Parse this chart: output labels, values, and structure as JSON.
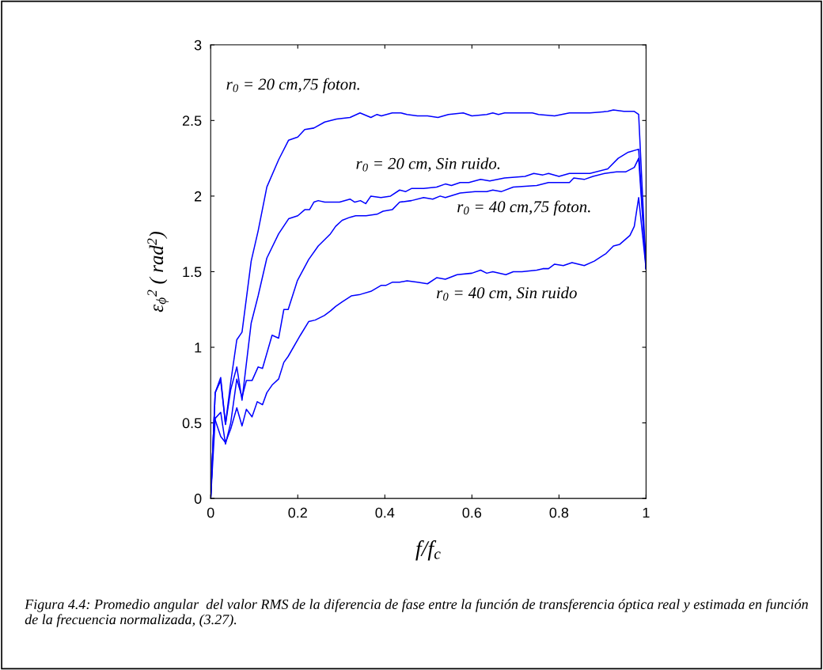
{
  "chart_data": {
    "type": "line",
    "xlabel": "f/f$_{c}$",
    "ylabel": "ε$_{ϕ}$$^{2}$ ( rad$^{2}$)",
    "xlim": [
      0,
      1
    ],
    "ylim": [
      0,
      3
    ],
    "xticks": [
      0,
      0.2,
      0.4,
      0.6,
      0.8,
      1
    ],
    "yticks": [
      0,
      0.5,
      1,
      1.5,
      2,
      2.5,
      3
    ],
    "grid": false,
    "marker": "none",
    "line_style": "solid",
    "series": [
      {
        "color": "#0000ff",
        "x": [
          0,
          0.0104,
          0.023,
          0.034,
          0.046,
          0.06,
          0.072,
          0.093,
          0.109,
          0.129,
          0.156,
          0.179,
          0.2,
          0.216,
          0.237,
          0.262,
          0.289,
          0.32,
          0.343,
          0.368,
          0.382,
          0.392,
          0.417,
          0.437,
          0.451,
          0.475,
          0.498,
          0.522,
          0.546,
          0.58,
          0.6,
          0.634,
          0.648,
          0.661,
          0.675,
          0.715,
          0.739,
          0.753,
          0.79,
          0.824,
          0.871,
          0.912,
          0.925,
          0.949,
          0.973,
          0.983,
          1
        ],
        "values": [
          0,
          0.7,
          0.8,
          0.49,
          0.77,
          1.05,
          1.1,
          1.57,
          1.77,
          2.06,
          2.24,
          2.37,
          2.39,
          2.44,
          2.45,
          2.49,
          2.51,
          2.52,
          2.55,
          2.52,
          2.54,
          2.53,
          2.55,
          2.55,
          2.54,
          2.53,
          2.53,
          2.52,
          2.54,
          2.55,
          2.53,
          2.54,
          2.55,
          2.54,
          2.55,
          2.55,
          2.55,
          2.54,
          2.53,
          2.55,
          2.55,
          2.56,
          2.57,
          2.56,
          2.56,
          2.54,
          1.52
        ]
      },
      {
        "color": "#0000ff",
        "x": [
          0,
          0.0104,
          0.023,
          0.034,
          0.046,
          0.06,
          0.072,
          0.093,
          0.109,
          0.129,
          0.156,
          0.179,
          0.2,
          0.216,
          0.227,
          0.237,
          0.247,
          0.262,
          0.282,
          0.296,
          0.32,
          0.331,
          0.344,
          0.356,
          0.368,
          0.391,
          0.413,
          0.434,
          0.448,
          0.461,
          0.489,
          0.519,
          0.539,
          0.553,
          0.573,
          0.593,
          0.62,
          0.641,
          0.675,
          0.722,
          0.742,
          0.763,
          0.776,
          0.8,
          0.824,
          0.871,
          0.912,
          0.936,
          0.959,
          0.983,
          1
        ],
        "values": [
          0,
          0.7,
          0.78,
          0.49,
          0.72,
          0.87,
          0.65,
          1.16,
          1.34,
          1.59,
          1.75,
          1.85,
          1.87,
          1.91,
          1.91,
          1.96,
          1.97,
          1.96,
          1.96,
          1.96,
          1.98,
          1.96,
          1.97,
          1.95,
          2.0,
          1.99,
          2.0,
          2.04,
          2.03,
          2.05,
          2.05,
          2.06,
          2.08,
          2.07,
          2.09,
          2.09,
          2.11,
          2.1,
          2.12,
          2.13,
          2.15,
          2.14,
          2.15,
          2.13,
          2.15,
          2.15,
          2.18,
          2.25,
          2.29,
          2.31,
          1.52
        ]
      },
      {
        "color": "#0000ff",
        "x": [
          0,
          0.0104,
          0.023,
          0.034,
          0.046,
          0.06,
          0.072,
          0.082,
          0.095,
          0.109,
          0.119,
          0.141,
          0.156,
          0.168,
          0.178,
          0.199,
          0.225,
          0.247,
          0.275,
          0.287,
          0.302,
          0.32,
          0.333,
          0.357,
          0.382,
          0.396,
          0.417,
          0.434,
          0.461,
          0.489,
          0.51,
          0.527,
          0.539,
          0.573,
          0.607,
          0.634,
          0.648,
          0.668,
          0.695,
          0.749,
          0.776,
          0.824,
          0.834,
          0.858,
          0.878,
          0.905,
          0.932,
          0.953,
          0.973,
          0.983,
          1
        ],
        "values": [
          0,
          0.53,
          0.57,
          0.36,
          0.5,
          0.79,
          0.67,
          0.78,
          0.78,
          0.87,
          0.86,
          1.08,
          1.06,
          1.25,
          1.25,
          1.44,
          1.58,
          1.67,
          1.75,
          1.8,
          1.84,
          1.86,
          1.87,
          1.87,
          1.88,
          1.9,
          1.91,
          1.96,
          1.97,
          1.99,
          1.98,
          2.0,
          1.99,
          2.02,
          2.03,
          2.03,
          2.04,
          2.03,
          2.06,
          2.07,
          2.09,
          2.09,
          2.12,
          2.11,
          2.13,
          2.15,
          2.16,
          2.16,
          2.19,
          2.25,
          1.52
        ]
      },
      {
        "color": "#0000ff",
        "x": [
          0,
          0.008,
          0.023,
          0.034,
          0.046,
          0.06,
          0.072,
          0.082,
          0.095,
          0.107,
          0.119,
          0.129,
          0.141,
          0.156,
          0.168,
          0.178,
          0.206,
          0.225,
          0.24,
          0.261,
          0.275,
          0.287,
          0.302,
          0.323,
          0.344,
          0.368,
          0.392,
          0.403,
          0.417,
          0.434,
          0.451,
          0.475,
          0.498,
          0.519,
          0.539,
          0.566,
          0.6,
          0.62,
          0.634,
          0.648,
          0.678,
          0.695,
          0.715,
          0.749,
          0.763,
          0.776,
          0.79,
          0.81,
          0.83,
          0.858,
          0.881,
          0.908,
          0.925,
          0.939,
          0.963,
          0.973,
          0.983,
          1
        ],
        "values": [
          0,
          0.54,
          0.41,
          0.37,
          0.46,
          0.6,
          0.48,
          0.59,
          0.54,
          0.64,
          0.62,
          0.7,
          0.75,
          0.79,
          0.9,
          0.94,
          1.08,
          1.17,
          1.18,
          1.21,
          1.24,
          1.27,
          1.3,
          1.34,
          1.35,
          1.37,
          1.41,
          1.41,
          1.43,
          1.43,
          1.44,
          1.43,
          1.42,
          1.46,
          1.45,
          1.48,
          1.49,
          1.51,
          1.49,
          1.5,
          1.48,
          1.5,
          1.5,
          1.51,
          1.52,
          1.52,
          1.55,
          1.54,
          1.56,
          1.54,
          1.57,
          1.62,
          1.67,
          1.68,
          1.74,
          1.8,
          1.99,
          1.52
        ]
      }
    ],
    "annotations": [
      "r$_{0}$ = 20 cm,75 foton.",
      "r$_{0}$ = 20 cm, Sin ruido.",
      "r$_{0}$ = 40 cm,75 foton.",
      "r$_{0}$ = 40 cm, Sin ruido",
      "Figura 4.4: Promedio angular  del valor RMS de la diferencia de fase entre la función de transferencia óptica real y estimada en función de la frecuencia normalizada, (3.27)."
    ]
  }
}
